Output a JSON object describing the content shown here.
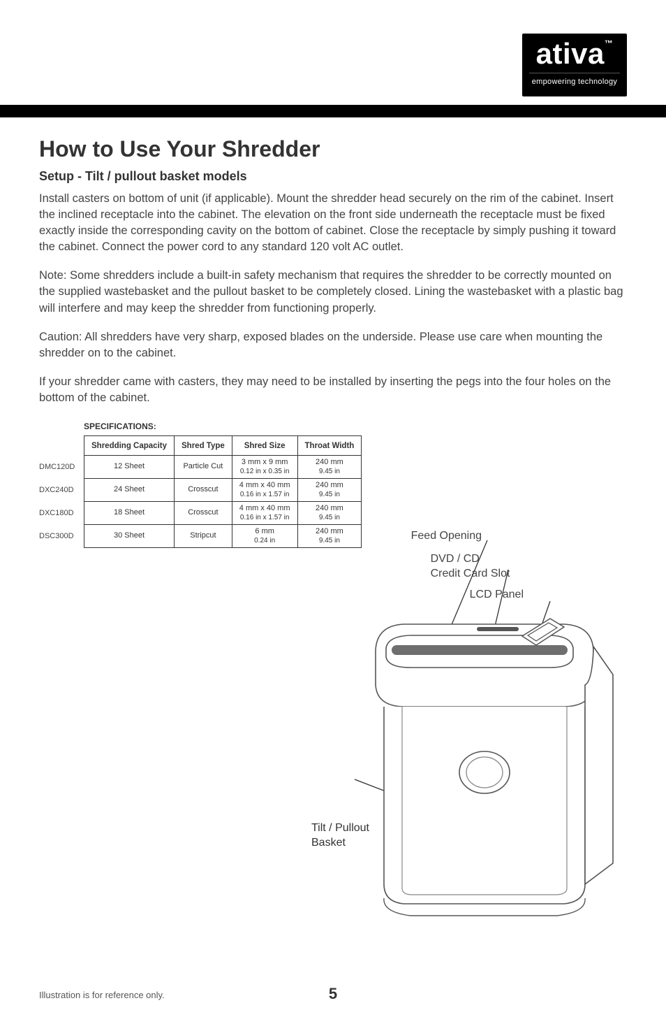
{
  "logo": {
    "brand": "ativa",
    "tm": "™",
    "tagline": "empowering technology"
  },
  "title": "How to Use Your Shredder",
  "subtitle": "Setup - Tilt / pullout basket models",
  "para1": "Install casters on bottom of unit (if applicable). Mount the shredder head securely on the rim of the cabinet. Insert the inclined receptacle into the cabinet. The elevation on the front side underneath the receptacle must be fixed exactly inside the corresponding cavity on the bottom of cabinet. Close the receptacle by simply pushing it toward the cabinet. Connect the power cord to any standard 120 volt AC outlet.",
  "para2": "Note: Some shredders include a built-in safety mechanism that requires the shredder to be correctly mounted on the supplied wastebasket and the pullout basket to be completely closed. Lining the wastebasket with a plastic bag will interfere and may keep the shredder from functioning properly.",
  "para3": "Caution: All shredders have very sharp, exposed blades on the underside. Please use care when mounting the shredder on to the cabinet.",
  "para4": "If your shredder came with casters, they may need to be installed by inserting the pegs into the four holes on the bottom of the cabinet.",
  "spec_heading": "SPECIFICATIONS:",
  "spec_cols": [
    "Shredding Capacity",
    "Shred Type",
    "Shred Size",
    "Throat Width"
  ],
  "spec_rows": [
    {
      "model": "DMC120D",
      "cap": "12 Sheet",
      "type": "Particle Cut",
      "size1": "3 mm x 9 mm",
      "size2": "0.12 in x 0.35 in",
      "throat1": "240 mm",
      "throat2": "9.45 in"
    },
    {
      "model": "DXC240D",
      "cap": "24 Sheet",
      "type": "Crosscut",
      "size1": "4 mm x 40 mm",
      "size2": "0.16 in x 1.57 in",
      "throat1": "240 mm",
      "throat2": "9.45 in"
    },
    {
      "model": "DXC180D",
      "cap": "18 Sheet",
      "type": "Crosscut",
      "size1": "4 mm x 40 mm",
      "size2": "0.16 in x 1.57 in",
      "throat1": "240 mm",
      "throat2": "9.45 in"
    },
    {
      "model": "DSC300D",
      "cap": "30 Sheet",
      "type": "Stripcut",
      "size1": "6 mm",
      "size2": "0.24 in",
      "throat1": "240 mm",
      "throat2": "9.45 in"
    }
  ],
  "callouts": {
    "feed": "Feed Opening",
    "dvd1": "DVD / CD",
    "dvd2": "Credit Card Slot",
    "lcd": "LCD Panel",
    "tilt1": "Tilt / Pullout",
    "tilt2": "Basket"
  },
  "footer_note": "Illustration is for reference only.",
  "page_number": "5",
  "colors": {
    "text": "#3a3a3a",
    "bar": "#000000",
    "border": "#333333"
  }
}
